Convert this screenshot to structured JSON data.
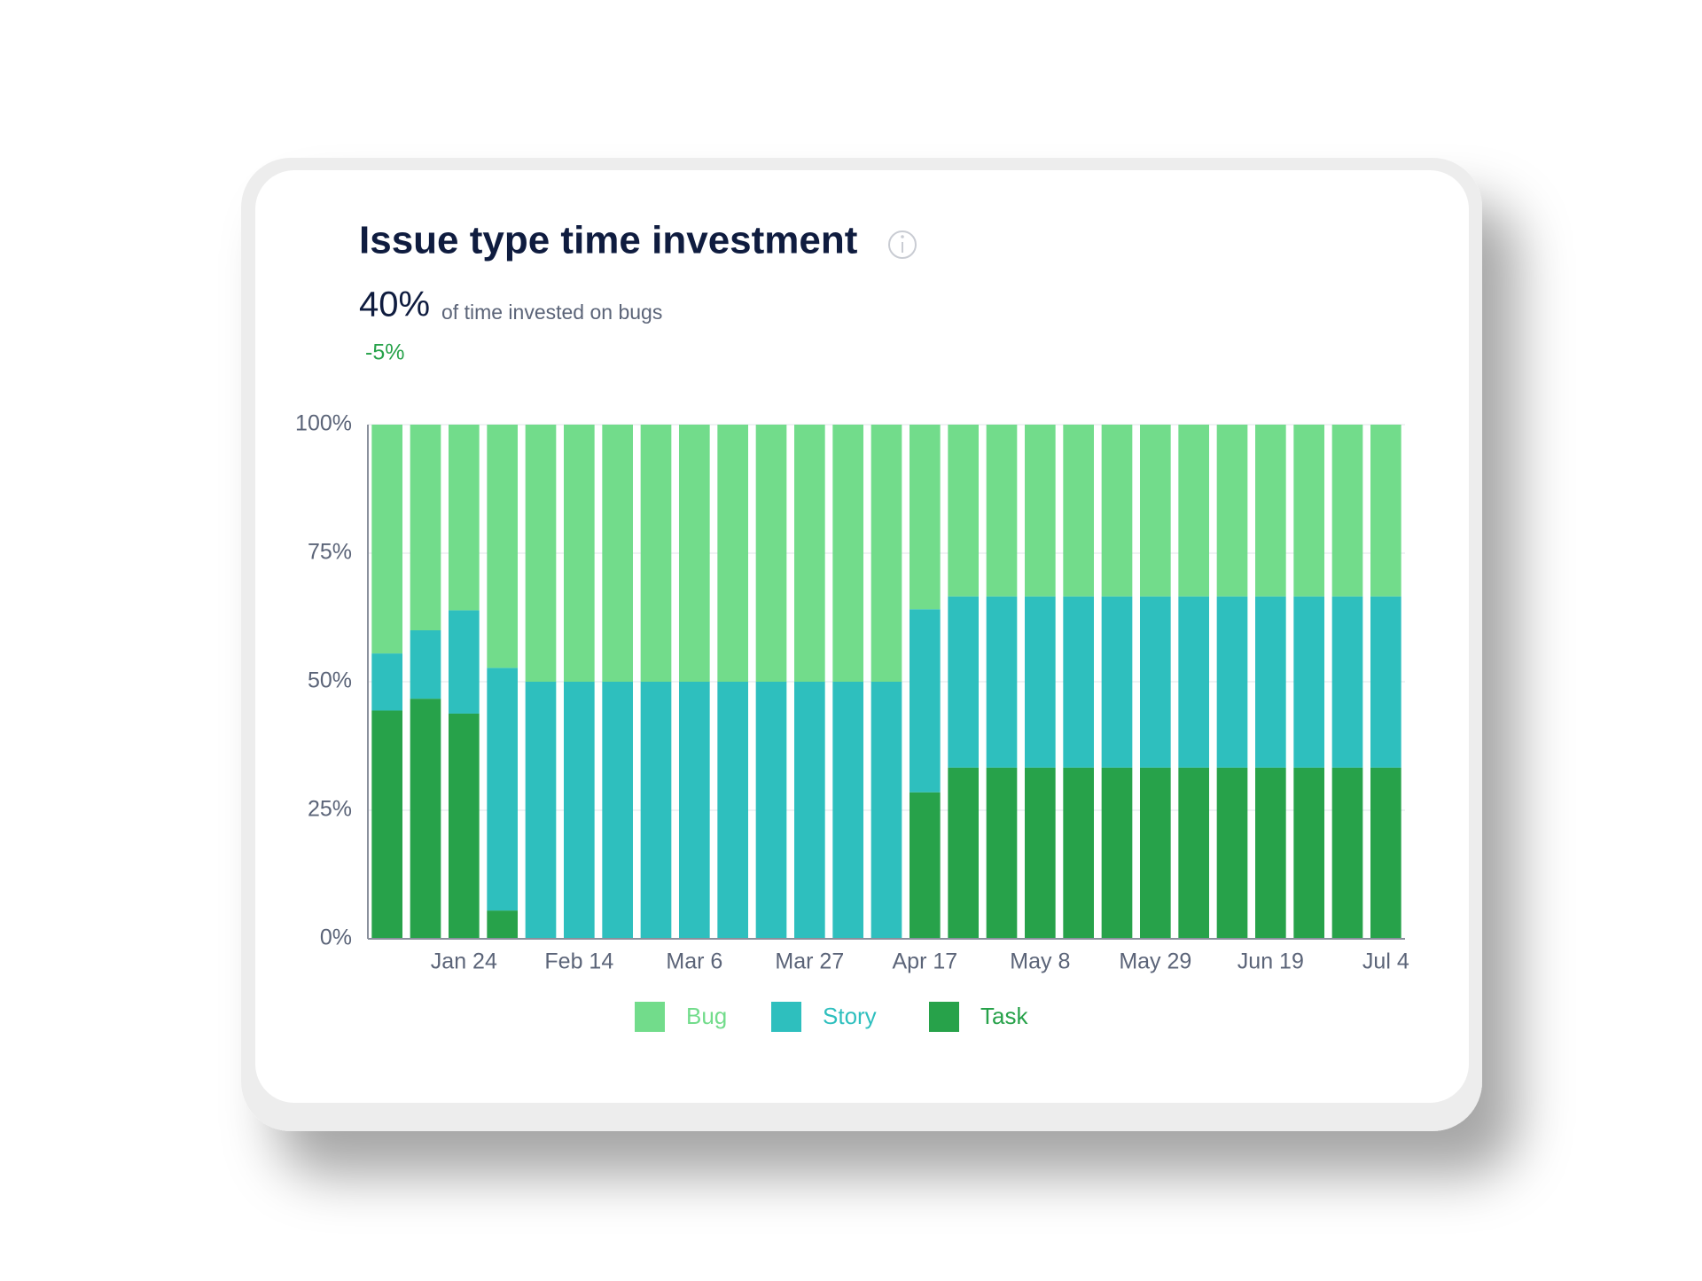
{
  "chart_data": {
    "type": "stacked_bar",
    "title": "Issue type time investment",
    "stat": "40%",
    "stat_label": "of time invested on bugs",
    "change": "-5%",
    "categories": [
      null,
      null,
      "Jan 24",
      null,
      null,
      "Feb 14",
      null,
      null,
      "Mar 6",
      null,
      null,
      "Mar 27",
      null,
      null,
      "Apr 17",
      null,
      null,
      "May 8",
      null,
      null,
      "May 29",
      null,
      null,
      "Jun 19",
      null,
      null,
      "Jul 4"
    ],
    "series": [
      {
        "name": "Task",
        "color": "#27a24a",
        "values": [
          44.4,
          46.7,
          43.8,
          5.5,
          0,
          0,
          0,
          0,
          0,
          0,
          0,
          0,
          0,
          0,
          28.5,
          33.3,
          33.3,
          33.3,
          33.3,
          33.3,
          33.3,
          33.3,
          33.3,
          33.3,
          33.3,
          33.3,
          33.3
        ]
      },
      {
        "name": "Story",
        "color": "#2ebfbe",
        "values": [
          11.1,
          13.3,
          20.1,
          47.2,
          50,
          50,
          50,
          50,
          50,
          50,
          50,
          50,
          50,
          50,
          35.6,
          33.3,
          33.3,
          33.3,
          33.3,
          33.3,
          33.3,
          33.3,
          33.3,
          33.3,
          33.3,
          33.3,
          33.3
        ]
      },
      {
        "name": "Bug",
        "color": "#72dc8b",
        "values": [
          44.5,
          40,
          36.1,
          47.3,
          50,
          50,
          50,
          50,
          50,
          50,
          50,
          50,
          50,
          50,
          35.9,
          33.4,
          33.4,
          33.4,
          33.4,
          33.4,
          33.4,
          33.4,
          33.4,
          33.4,
          33.4,
          33.4,
          33.4
        ]
      }
    ],
    "legend_order": [
      2,
      1,
      0
    ],
    "ylim": [
      0,
      100
    ],
    "yticks": [
      {
        "value": 0,
        "label": "0%"
      },
      {
        "value": 25,
        "label": "25%"
      },
      {
        "value": 50,
        "label": "50%"
      },
      {
        "value": 75,
        "label": "75%"
      },
      {
        "value": 100,
        "label": "100%"
      }
    ],
    "grid": true
  }
}
